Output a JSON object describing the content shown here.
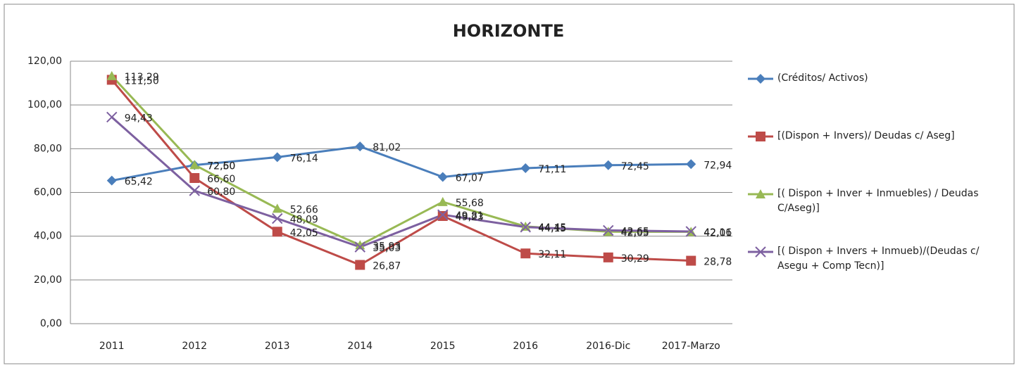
{
  "chart_data": {
    "type": "line",
    "title": "HORIZONTE",
    "categories": [
      "2011",
      "2012",
      "2013",
      "2014",
      "2015",
      "2016",
      "2016-Dic",
      "2017-Marzo"
    ],
    "series": [
      {
        "name": "(Créditos/ Activos)",
        "color": "#4a7ebb",
        "marker": "diamond",
        "values": [
          65.42,
          72.5,
          76.14,
          81.02,
          67.07,
          71.11,
          72.45,
          72.94
        ],
        "value_labels": [
          "65,42",
          "72,50",
          "76,14",
          "81,02",
          "67,07",
          "71,11",
          "72,45",
          "72,94"
        ]
      },
      {
        "name": "[(Dispon + Invers)/ Deudas c/ Aseg]",
        "color": "#be4b48",
        "marker": "square",
        "values": [
          111.5,
          66.6,
          42.05,
          26.87,
          49.23,
          32.11,
          30.29,
          28.78
        ],
        "value_labels": [
          "111,50",
          "66,60",
          "42,05",
          "26,87",
          "49,23",
          "32,11",
          "30,29",
          "28,78"
        ]
      },
      {
        "name": "[( Dispon + Inver + Inmuebles) / Deudas C/Aseg)]",
        "color": "#98b954",
        "marker": "triangle",
        "values": [
          113.29,
          72.6,
          52.66,
          35.93,
          55.68,
          44.45,
          42.05,
          42.01
        ],
        "value_labels": [
          "113,29",
          "72,60",
          "52,66",
          "35,93",
          "55,68",
          "44,45",
          "42,05",
          "42,01"
        ]
      },
      {
        "name": "[( Dispon + Invers + Inmueb)/(Deudas c/ Asegu + Comp Tecn)]",
        "color": "#7d60a0",
        "marker": "x",
        "values": [
          94.43,
          60.8,
          48.09,
          35.03,
          49.81,
          44.15,
          42.65,
          42.16
        ],
        "value_labels": [
          "94,43",
          "60,80",
          "48,09",
          "35,03",
          "49,81",
          "44,15",
          "42,65",
          "42,16"
        ]
      }
    ],
    "ylim": [
      0,
      120
    ],
    "yticks": [
      {
        "value": 0,
        "label": "0,00"
      },
      {
        "value": 20,
        "label": "20,00"
      },
      {
        "value": 40,
        "label": "40,00"
      },
      {
        "value": 60,
        "label": "60,00"
      },
      {
        "value": 80,
        "label": "80,00"
      },
      {
        "value": 100,
        "label": "100,00"
      },
      {
        "value": 120,
        "label": "120,00"
      }
    ],
    "grid": true,
    "legend": "right"
  }
}
